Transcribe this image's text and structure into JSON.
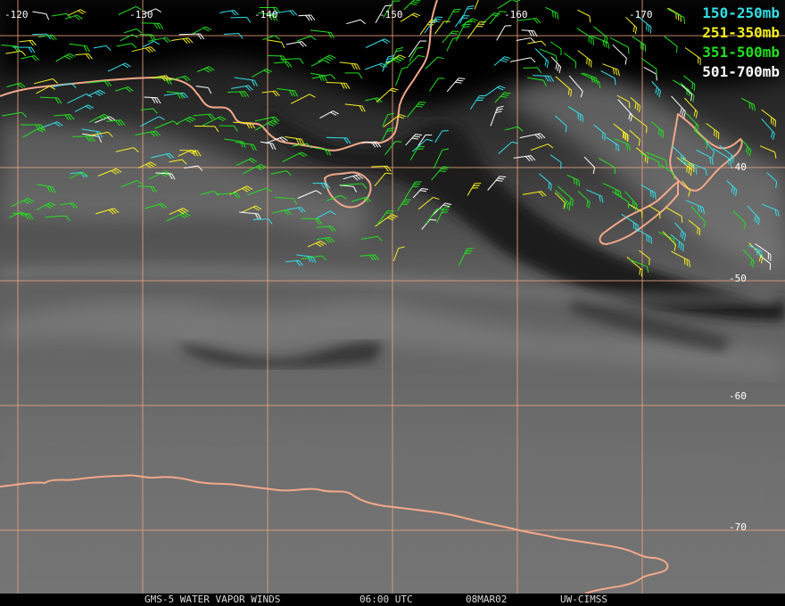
{
  "colors": {
    "layer_150_250": "#33dfe8",
    "layer_251_350": "#f5f020",
    "layer_351_500": "#22e01e",
    "layer_501_700": "#ffffff",
    "grid": "#e8a07c",
    "coast": "#f2a88a"
  },
  "longitude_labels": [
    "-120",
    "-130",
    "-140",
    "-150",
    "-160",
    "-170"
  ],
  "latitude_labels": [
    "-40",
    "-50",
    "-60",
    "-70"
  ],
  "legend": [
    {
      "label": "150-250mb",
      "color_key": "layer_150_250"
    },
    {
      "label": "251-350mb",
      "color_key": "layer_251_350"
    },
    {
      "label": "351-500mb",
      "color_key": "layer_351_500"
    },
    {
      "label": "501-700mb",
      "color_key": "layer_501_700"
    }
  ],
  "footer": {
    "product": "GMS-5 WATER VAPOR WINDS",
    "time": "06:00 UTC",
    "date": "08MAR02",
    "source": "UW-CIMSS"
  }
}
